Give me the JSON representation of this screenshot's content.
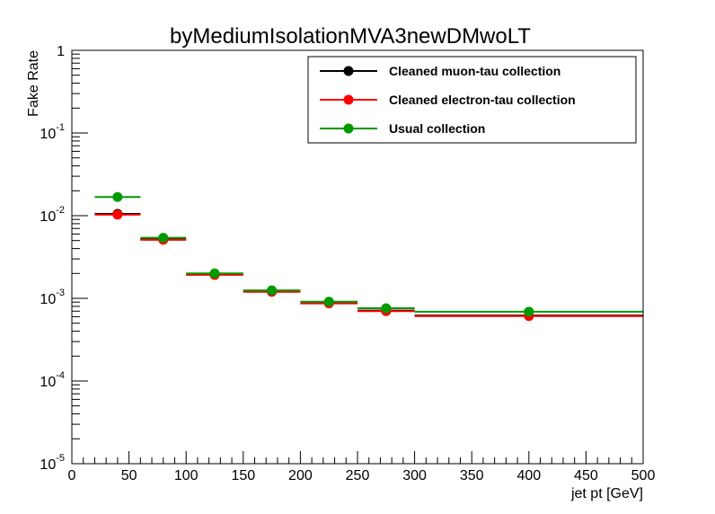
{
  "chart_data": {
    "type": "scatter",
    "title": "byMediumIsolationMVA3newDMwoLT",
    "xlabel": "jet pt [GeV]",
    "ylabel": "Fake Rate",
    "xlim": [
      0,
      500
    ],
    "ylim": [
      1e-05,
      1
    ],
    "yscale": "log",
    "grid": false,
    "legend_position": "top-right",
    "x_ticks": [
      "0",
      "50",
      "100",
      "150",
      "200",
      "250",
      "300",
      "350",
      "400",
      "450",
      "500"
    ],
    "y_ticks": [
      {
        "base": "10",
        "exp": "-5"
      },
      {
        "base": "10",
        "exp": "-4"
      },
      {
        "base": "10",
        "exp": "-3"
      },
      {
        "base": "10",
        "exp": "-2"
      },
      {
        "base": "10",
        "exp": "-1"
      },
      {
        "base": "1",
        "exp": ""
      }
    ],
    "bins": [
      [
        20,
        60
      ],
      [
        60,
        100
      ],
      [
        100,
        150
      ],
      [
        150,
        200
      ],
      [
        200,
        250
      ],
      [
        250,
        300
      ],
      [
        300,
        500
      ]
    ],
    "x": [
      40,
      80,
      125,
      175,
      225,
      275,
      400
    ],
    "series": [
      {
        "name": "Cleaned muon-tau collection",
        "color": "#000000",
        "values": [
          0.0105,
          0.0052,
          0.00195,
          0.00122,
          0.00088,
          0.00071,
          0.00062
        ]
      },
      {
        "name": "Cleaned electron-tau collection",
        "color": "#ff0000",
        "values": [
          0.0103,
          0.0051,
          0.00192,
          0.0012,
          0.00087,
          0.0007,
          0.00061
        ]
      },
      {
        "name": "Usual collection",
        "color": "#009900",
        "values": [
          0.0168,
          0.0054,
          0.002,
          0.00125,
          0.00091,
          0.00076,
          0.00069
        ]
      }
    ]
  }
}
